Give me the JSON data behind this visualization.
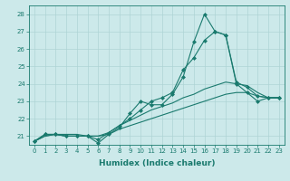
{
  "title": "",
  "xlabel": "Humidex (Indice chaleur)",
  "ylabel": "",
  "bg_color": "#cce9ea",
  "grid_color": "#aed4d5",
  "line_color": "#1a7a6e",
  "xlim": [
    -0.5,
    23.5
  ],
  "ylim": [
    20.5,
    28.5
  ],
  "yticks": [
    21,
    22,
    23,
    24,
    25,
    26,
    27,
    28
  ],
  "xticks": [
    0,
    1,
    2,
    3,
    4,
    5,
    6,
    7,
    8,
    9,
    10,
    11,
    12,
    13,
    14,
    15,
    16,
    17,
    18,
    19,
    20,
    21,
    22,
    23
  ],
  "series": [
    [
      20.7,
      21.1,
      21.1,
      21.0,
      21.0,
      21.0,
      20.6,
      21.1,
      21.5,
      22.3,
      23.0,
      22.8,
      22.8,
      23.4,
      24.4,
      26.4,
      28.0,
      27.0,
      26.8,
      24.1,
      23.8,
      23.3,
      23.2,
      23.2
    ],
    [
      20.7,
      21.1,
      21.1,
      21.0,
      21.0,
      21.0,
      20.8,
      21.2,
      21.6,
      22.0,
      22.5,
      23.0,
      23.2,
      23.5,
      24.8,
      25.5,
      26.5,
      27.0,
      26.8,
      24.0,
      23.5,
      23.0,
      23.2,
      23.2
    ],
    [
      20.7,
      21.0,
      21.1,
      21.0,
      21.0,
      21.0,
      21.0,
      21.2,
      21.6,
      21.9,
      22.2,
      22.5,
      22.7,
      22.9,
      23.2,
      23.4,
      23.7,
      23.9,
      24.1,
      24.0,
      23.9,
      23.5,
      23.2,
      23.2
    ],
    [
      20.7,
      21.0,
      21.1,
      21.1,
      21.1,
      21.0,
      21.0,
      21.1,
      21.4,
      21.6,
      21.8,
      22.0,
      22.2,
      22.4,
      22.6,
      22.8,
      23.0,
      23.2,
      23.4,
      23.5,
      23.5,
      23.3,
      23.2,
      23.2
    ]
  ],
  "marker_series": [
    0,
    1
  ],
  "marker": "D",
  "markersize": 2.0,
  "linewidth": 0.8,
  "tick_fontsize": 5.0,
  "xlabel_fontsize": 6.5
}
